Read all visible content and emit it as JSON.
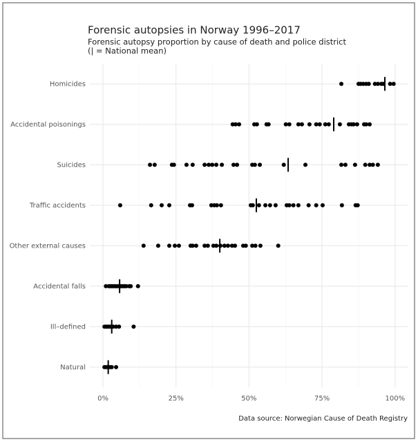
{
  "chart_data": {
    "type": "strip",
    "title": "Forensic autopsies in Norway 1996–2017",
    "subtitle": "Forensic autopsy proportion by cause of death and police district",
    "legend_note": "(| = National mean)",
    "caption": "Data source: Norwegian Cause of Death Registry",
    "categories": [
      "Homicides",
      "Accidental poisonings",
      "Suicides",
      "Traffic accidents",
      "Other external causes",
      "Accidental falls",
      "Ill–defined",
      "Natural"
    ],
    "values": [
      [
        81.6,
        87.5,
        88.2,
        89.1,
        90.1,
        91,
        93.1,
        94.1,
        95.3,
        96,
        98.3,
        99.5
      ],
      [
        44.4,
        45.4,
        46.6,
        51.8,
        52.7,
        56,
        56.7,
        62.6,
        63.8,
        66.9,
        68.1,
        70.7,
        73,
        74.2,
        76.1,
        77.3,
        81.1,
        84.2,
        85.1,
        85.8,
        87,
        89.4,
        90.1,
        91.3
      ],
      [
        16.1,
        17.7,
        23.6,
        24.3,
        28.6,
        30.7,
        34.8,
        36.2,
        37.4,
        38.8,
        40.7,
        44.7,
        45.9,
        51.1,
        52,
        53.7,
        61.9,
        69.3,
        81.6,
        83,
        86.3,
        89.8,
        91.3,
        92.4,
        94.1
      ],
      [
        5.9,
        16.5,
        20.1,
        22.7,
        29.8,
        30.5,
        37.1,
        38.1,
        39,
        40.4,
        50.6,
        51.3,
        53.4,
        55.6,
        57.2,
        59.1,
        62.9,
        63.8,
        65.2,
        66.9,
        70.4,
        73,
        75.2,
        81.8,
        86.5,
        87.2
      ],
      [
        13.9,
        18.9,
        22.7,
        24.6,
        26,
        30,
        30.7,
        31.9,
        34.8,
        35.9,
        37.8,
        38.8,
        40.2,
        41.6,
        42.8,
        44.2,
        45.2,
        48,
        48.9,
        51.1,
        52.2,
        53.9,
        60
      ],
      [
        1,
        2,
        2.5,
        3,
        3.5,
        4,
        4.5,
        5,
        5.5,
        6,
        6.5,
        7,
        7.5,
        8,
        9,
        9.5,
        12
      ],
      [
        0.5,
        1,
        1.5,
        2,
        2.5,
        3.5,
        4.5,
        5.5,
        10.5
      ],
      [
        0.5,
        1,
        1.5,
        2,
        2.5,
        3,
        4.5
      ]
    ],
    "means": [
      96.5,
      79,
      63.4,
      52.5,
      40,
      5.7,
      3,
      1.8
    ],
    "color": "#000000",
    "xlim": [
      -4.5,
      104.3
    ],
    "xticks": [
      {
        "value": 0,
        "label": "0%"
      },
      {
        "value": 25,
        "label": "25%"
      },
      {
        "value": 50,
        "label": "50%"
      },
      {
        "value": 75,
        "label": "75%"
      },
      {
        "value": 100,
        "label": "100%"
      }
    ],
    "grid": true
  }
}
